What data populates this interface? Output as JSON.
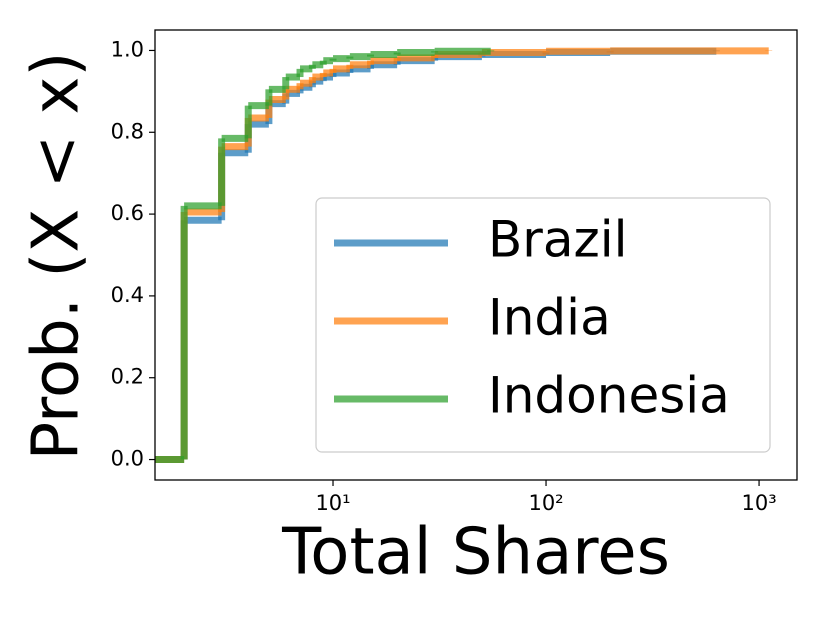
{
  "chart_data": {
    "type": "step",
    "xlabel": "Total Shares",
    "ylabel": "Prob. (X < x)",
    "xscale": "log",
    "xlim": [
      1.46,
      1507
    ],
    "ylim": [
      -0.05,
      1.05
    ],
    "xticks": [
      {
        "value": 10,
        "label": "10¹"
      },
      {
        "value": 100,
        "label": "10²"
      },
      {
        "value": 1000,
        "label": "10³"
      }
    ],
    "yticks": [
      {
        "value": 0,
        "label": "0.0"
      },
      0.2,
      0.4,
      0.6,
      0.8,
      {
        "value": 1,
        "label": "1.0"
      }
    ],
    "legend": "lower right",
    "series": [
      {
        "name": "Brazil",
        "color": "#1f77b4",
        "x": [
          1.46,
          2,
          3,
          4,
          5,
          6,
          7,
          8,
          9,
          10,
          12,
          15,
          20,
          30,
          50,
          100,
          200,
          630
        ],
        "values": [
          0,
          0.585,
          0.75,
          0.82,
          0.87,
          0.895,
          0.91,
          0.925,
          0.935,
          0.945,
          0.955,
          0.965,
          0.975,
          0.985,
          0.99,
          0.995,
          0.998,
          1.0
        ]
      },
      {
        "name": "India",
        "color": "#ff7f0e",
        "x": [
          1.46,
          2,
          3,
          4,
          5,
          6,
          7,
          8,
          9,
          10,
          12,
          15,
          20,
          30,
          50,
          100,
          200,
          1110
        ],
        "values": [
          0,
          0.605,
          0.765,
          0.835,
          0.88,
          0.905,
          0.92,
          0.935,
          0.945,
          0.955,
          0.965,
          0.975,
          0.982,
          0.99,
          0.995,
          0.998,
          0.999,
          1.0
        ]
      },
      {
        "name": "Indonesia",
        "color": "#2ca02c",
        "x": [
          1.46,
          2,
          3,
          4,
          5,
          6,
          7,
          8,
          9,
          10,
          12,
          15,
          20,
          30,
          55
        ],
        "values": [
          0,
          0.62,
          0.785,
          0.865,
          0.905,
          0.935,
          0.955,
          0.965,
          0.975,
          0.98,
          0.985,
          0.99,
          0.995,
          0.998,
          1.0
        ]
      }
    ]
  }
}
